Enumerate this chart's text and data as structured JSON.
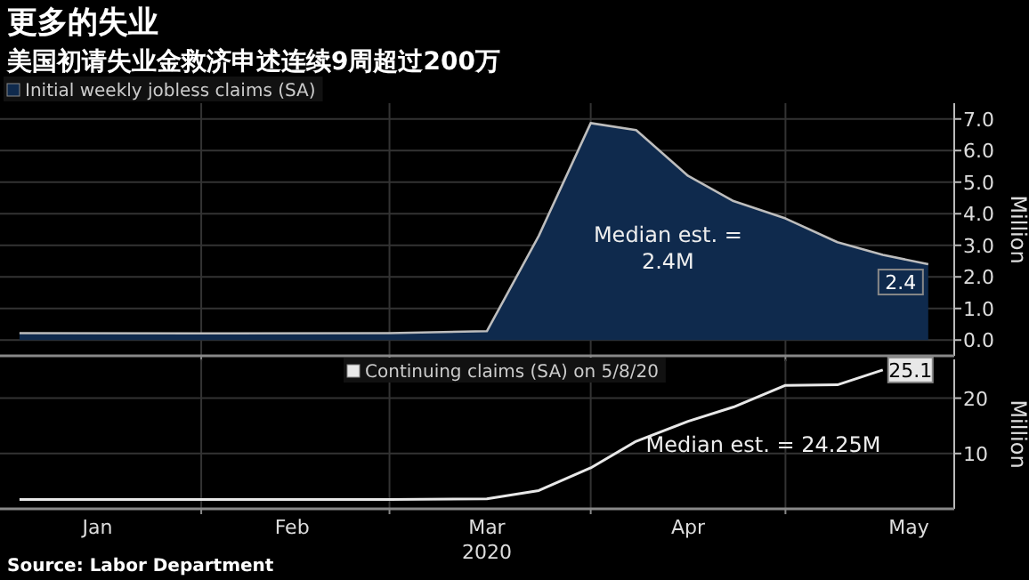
{
  "chart_data": [
    {
      "type": "area",
      "title": "更多的失业",
      "subtitle": "美国初请失业金救济申述连续9周超过200万",
      "ylabel": "Million",
      "series": [
        {
          "name": "Initial weekly jobless claims (SA)",
          "color": "#0f2a4d",
          "x": [
            "2020-01-04",
            "2020-02-01",
            "2020-03-01",
            "2020-03-16",
            "2020-03-24",
            "2020-04-01",
            "2020-04-08",
            "2020-04-16",
            "2020-04-23",
            "2020-05-01",
            "2020-05-09",
            "2020-05-16",
            "2020-05-23"
          ],
          "values": [
            0.22,
            0.21,
            0.22,
            0.28,
            3.3,
            6.87,
            6.65,
            5.2,
            4.4,
            3.85,
            3.1,
            2.7,
            2.4
          ],
          "value_labels": [
            null,
            null,
            null,
            null,
            null,
            null,
            null,
            null,
            null,
            null,
            null,
            null,
            "2.4"
          ]
        }
      ],
      "xlim": [
        "2020-01-01",
        "2020-05-27"
      ],
      "ylim": [
        -0.5,
        7.5
      ],
      "yticks": [
        {
          "value": 0,
          "label": "0.0"
        },
        {
          "value": 1,
          "label": "1.0"
        },
        {
          "value": 2,
          "label": "2.0"
        },
        {
          "value": 3,
          "label": "3.0"
        },
        {
          "value": 4,
          "label": "4.0"
        },
        {
          "value": 5,
          "label": "5.0"
        },
        {
          "value": 6,
          "label": "6.0"
        },
        {
          "value": 7,
          "label": "7.0"
        }
      ],
      "xticks": [
        {
          "value": "2020-02-01",
          "label": null
        },
        {
          "value": "2020-03-01",
          "label": null
        },
        {
          "value": "2020-04-01",
          "label": null
        },
        {
          "value": "2020-05-01",
          "label": null
        }
      ],
      "tick_labels": "y",
      "grid": true,
      "legend": "top left",
      "annotations": [
        "Median est. = 2.4M"
      ]
    },
    {
      "type": "line",
      "ylabel": "Million",
      "series": [
        {
          "name": "Continuing claims (SA) on 5/8/20",
          "color": "#e8e8e8",
          "x": [
            "2020-01-04",
            "2020-02-01",
            "2020-03-01",
            "2020-03-16",
            "2020-03-24",
            "2020-04-01",
            "2020-04-08",
            "2020-04-16",
            "2020-04-23",
            "2020-05-01",
            "2020-05-09",
            "2020-05-16"
          ],
          "values": [
            1.7,
            1.7,
            1.7,
            1.8,
            3.3,
            7.4,
            12.2,
            15.8,
            18.4,
            22.3,
            22.4,
            25.1
          ],
          "value_labels": [
            null,
            null,
            null,
            null,
            null,
            null,
            null,
            null,
            null,
            null,
            null,
            "25.1"
          ]
        }
      ],
      "xlim": [
        "2020-01-01",
        "2020-05-27"
      ],
      "ylim": [
        0,
        27
      ],
      "yticks": [
        10,
        20
      ],
      "xticks": [
        {
          "value": "2020-01-16",
          "label": "Jan"
        },
        {
          "value": "2020-02-01",
          "label": null
        },
        {
          "value": "2020-02-15",
          "label": "Feb"
        },
        {
          "value": "2020-03-01",
          "label": null
        },
        {
          "value": "2020-03-16",
          "label": "Mar 2020"
        },
        {
          "value": "2020-04-01",
          "label": null
        },
        {
          "value": "2020-04-16",
          "label": "Apr"
        },
        {
          "value": "2020-05-01",
          "label": null
        },
        {
          "value": "2020-05-20",
          "label": "May"
        }
      ],
      "grid": true,
      "legend": "top",
      "annotations": [
        "Median est. = 24.25M",
        "Source: Labor Department"
      ]
    }
  ]
}
